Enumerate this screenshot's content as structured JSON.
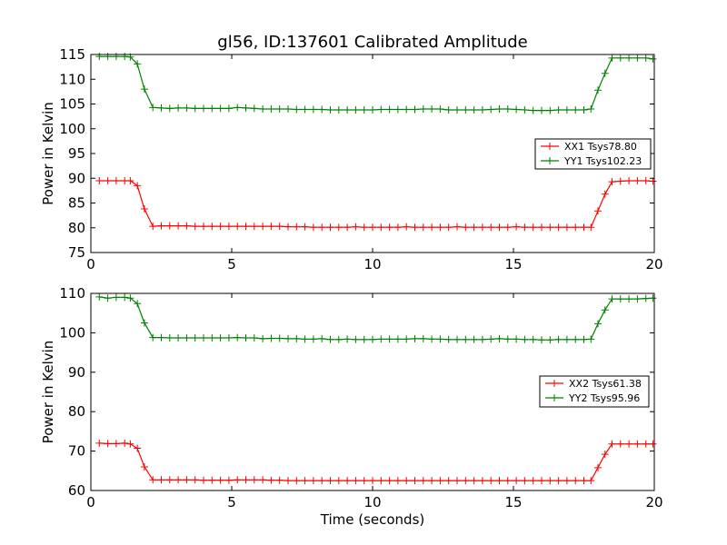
{
  "chart_data": [
    {
      "type": "line",
      "title": "gl56, ID:137601 Calibrated Amplitude",
      "xlabel": "",
      "ylabel": "Power in Kelvin",
      "xlim": [
        0,
        20
      ],
      "ylim": [
        75,
        115
      ],
      "x_ticks": [
        0,
        5,
        10,
        15,
        20
      ],
      "y_ticks": [
        75,
        80,
        85,
        90,
        95,
        100,
        105,
        110,
        115
      ],
      "grid": false,
      "legend_position": "center-right",
      "x": [
        0.3,
        0.6,
        0.9,
        1.2,
        1.4,
        1.65,
        1.9,
        2.2,
        2.5,
        2.8,
        3.1,
        3.4,
        3.7,
        4.0,
        4.3,
        4.6,
        4.9,
        5.2,
        5.5,
        5.8,
        6.1,
        6.4,
        6.7,
        7.0,
        7.3,
        7.6,
        7.9,
        8.2,
        8.5,
        8.8,
        9.1,
        9.4,
        9.7,
        10.0,
        10.3,
        10.6,
        10.9,
        11.2,
        11.5,
        11.8,
        12.1,
        12.4,
        12.7,
        13.0,
        13.3,
        13.6,
        13.9,
        14.2,
        14.5,
        14.8,
        15.1,
        15.4,
        15.7,
        16.0,
        16.3,
        16.6,
        16.9,
        17.2,
        17.5,
        17.75,
        18.0,
        18.25,
        18.5,
        18.8,
        19.1,
        19.4,
        19.7,
        19.95
      ],
      "series": [
        {
          "name": "XX1 Tsys78.80",
          "color": "#ff0000",
          "values": [
            89.5,
            89.5,
            89.5,
            89.5,
            89.5,
            88.5,
            83.8,
            80.3,
            80.4,
            80.4,
            80.4,
            80.4,
            80.3,
            80.3,
            80.3,
            80.3,
            80.3,
            80.3,
            80.3,
            80.3,
            80.3,
            80.3,
            80.3,
            80.2,
            80.2,
            80.2,
            80.1,
            80.1,
            80.1,
            80.1,
            80.1,
            80.2,
            80.1,
            80.1,
            80.1,
            80.1,
            80.1,
            80.2,
            80.1,
            80.1,
            80.1,
            80.1,
            80.1,
            80.2,
            80.1,
            80.1,
            80.1,
            80.1,
            80.1,
            80.1,
            80.2,
            80.1,
            80.1,
            80.1,
            80.1,
            80.1,
            80.1,
            80.1,
            80.1,
            80.1,
            83.4,
            86.8,
            89.3,
            89.4,
            89.5,
            89.5,
            89.5,
            89.4
          ]
        },
        {
          "name": "YY1 Tsys102.23",
          "color": "#008000",
          "values": [
            114.6,
            114.6,
            114.6,
            114.6,
            114.5,
            113.1,
            108.0,
            104.3,
            104.2,
            104.1,
            104.2,
            104.2,
            104.1,
            104.1,
            104.1,
            104.1,
            104.1,
            104.3,
            104.2,
            104.1,
            104.0,
            104.0,
            104.0,
            104.0,
            103.9,
            103.9,
            103.9,
            103.9,
            103.8,
            103.8,
            103.8,
            103.8,
            103.8,
            103.8,
            103.9,
            103.9,
            103.9,
            103.9,
            103.9,
            104.0,
            104.0,
            104.0,
            103.8,
            103.8,
            103.8,
            103.8,
            103.8,
            103.9,
            104.0,
            104.0,
            103.9,
            103.8,
            103.7,
            103.7,
            103.7,
            103.8,
            103.8,
            103.8,
            103.8,
            104.0,
            107.8,
            111.2,
            114.3,
            114.3,
            114.3,
            114.3,
            114.3,
            114.1
          ]
        }
      ]
    },
    {
      "type": "line",
      "title": "",
      "xlabel": "Time (seconds)",
      "ylabel": "Power in Kelvin",
      "xlim": [
        0,
        20
      ],
      "ylim": [
        60,
        110
      ],
      "x_ticks": [
        0,
        5,
        10,
        15,
        20
      ],
      "y_ticks": [
        60,
        70,
        80,
        90,
        100,
        110
      ],
      "grid": false,
      "legend_position": "center-right",
      "x": [
        0.3,
        0.6,
        0.9,
        1.2,
        1.4,
        1.65,
        1.9,
        2.2,
        2.5,
        2.8,
        3.1,
        3.4,
        3.7,
        4.0,
        4.3,
        4.6,
        4.9,
        5.2,
        5.5,
        5.8,
        6.1,
        6.4,
        6.7,
        7.0,
        7.3,
        7.6,
        7.9,
        8.2,
        8.5,
        8.8,
        9.1,
        9.4,
        9.7,
        10.0,
        10.3,
        10.6,
        10.9,
        11.2,
        11.5,
        11.8,
        12.1,
        12.4,
        12.7,
        13.0,
        13.3,
        13.6,
        13.9,
        14.2,
        14.5,
        14.8,
        15.1,
        15.4,
        15.7,
        16.0,
        16.3,
        16.6,
        16.9,
        17.2,
        17.5,
        17.75,
        18.0,
        18.25,
        18.5,
        18.8,
        19.1,
        19.4,
        19.7,
        19.95
      ],
      "series": [
        {
          "name": "XX2 Tsys61.38",
          "color": "#ff0000",
          "values": [
            72.0,
            71.9,
            71.9,
            72.0,
            71.8,
            70.7,
            66.0,
            62.7,
            62.7,
            62.7,
            62.7,
            62.7,
            62.7,
            62.6,
            62.6,
            62.6,
            62.6,
            62.7,
            62.7,
            62.7,
            62.7,
            62.6,
            62.6,
            62.5,
            62.5,
            62.5,
            62.5,
            62.5,
            62.5,
            62.5,
            62.5,
            62.5,
            62.5,
            62.5,
            62.5,
            62.5,
            62.5,
            62.5,
            62.5,
            62.5,
            62.5,
            62.5,
            62.5,
            62.5,
            62.5,
            62.5,
            62.5,
            62.5,
            62.5,
            62.5,
            62.5,
            62.5,
            62.5,
            62.5,
            62.5,
            62.5,
            62.5,
            62.5,
            62.5,
            62.5,
            65.8,
            69.2,
            71.8,
            71.8,
            71.8,
            71.8,
            71.8,
            71.8
          ]
        },
        {
          "name": "YY2 Tsys95.96",
          "color": "#008000",
          "values": [
            109.1,
            108.8,
            109.0,
            109.0,
            108.8,
            107.4,
            102.5,
            98.8,
            98.8,
            98.7,
            98.7,
            98.7,
            98.7,
            98.7,
            98.7,
            98.7,
            98.7,
            98.8,
            98.7,
            98.7,
            98.5,
            98.6,
            98.6,
            98.5,
            98.5,
            98.4,
            98.4,
            98.5,
            98.3,
            98.3,
            98.4,
            98.3,
            98.3,
            98.3,
            98.4,
            98.4,
            98.4,
            98.4,
            98.5,
            98.5,
            98.4,
            98.4,
            98.3,
            98.3,
            98.3,
            98.3,
            98.3,
            98.4,
            98.5,
            98.4,
            98.4,
            98.3,
            98.3,
            98.2,
            98.2,
            98.3,
            98.3,
            98.3,
            98.3,
            98.4,
            102.3,
            105.8,
            108.6,
            108.6,
            108.6,
            108.6,
            108.7,
            108.8
          ]
        }
      ]
    }
  ]
}
